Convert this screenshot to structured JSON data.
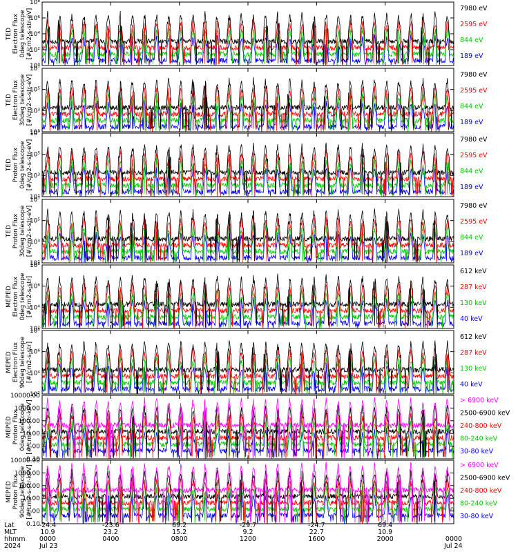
{
  "figure": {
    "footer": {
      "row_labels": [
        "Lat",
        "MLT",
        "hhmm",
        "2024"
      ],
      "lat": [
        "-24.4",
        "-23.6",
        "69.2",
        "-29.7",
        "-24.7",
        "69.4"
      ],
      "mlt": [
        "10.9",
        "23.2",
        "15.2",
        "9.2",
        "22.7",
        "10.9"
      ],
      "hhmm": [
        "0000",
        "0400",
        "0800",
        "1200",
        "1600",
        "2000",
        "0000"
      ],
      "date_start": "Jul 23",
      "date_end": "Jul 24"
    }
  },
  "chart_data": [
    {
      "type": "line",
      "ylabel": [
        "TED",
        "Electron Flux",
        "0deg telescope",
        "[#/cm2-s-str-eV]"
      ],
      "y_ticks": [
        "10⁰",
        "10²",
        "10⁴",
        "10⁶",
        "10⁸"
      ],
      "log_decades": [
        0,
        2,
        4,
        6,
        8
      ],
      "xlim_hours": [
        0,
        24
      ],
      "series": [
        {
          "name": "7980 eV",
          "color": "#000000"
        },
        {
          "name": "2595 eV",
          "color": "#ff0000"
        },
        {
          "name": "844 eV",
          "color": "#00cc00"
        },
        {
          "name": "189 eV",
          "color": "#0000ff"
        }
      ]
    },
    {
      "type": "line",
      "ylabel": [
        "TED",
        "Electron Flux",
        "30deg telescope",
        "[#/cm2-s-str-eV]"
      ],
      "y_ticks": [
        "10¹",
        "10³",
        "10⁵",
        "10⁷"
      ],
      "log_decades": [
        1,
        3,
        5,
        7
      ],
      "xlim_hours": [
        0,
        24
      ],
      "series": [
        {
          "name": "7980 eV",
          "color": "#000000"
        },
        {
          "name": "2595 eV",
          "color": "#ff0000"
        },
        {
          "name": "844 eV",
          "color": "#00cc00"
        },
        {
          "name": "189 eV",
          "color": "#0000ff"
        }
      ]
    },
    {
      "type": "line",
      "ylabel": [
        "TED",
        "Proton Flux",
        "0deg telescope",
        "[#/cm2-s-str-eV]"
      ],
      "y_ticks": [
        "10¹",
        "10³",
        "10⁵",
        "10⁷"
      ],
      "log_decades": [
        1,
        3,
        5,
        7
      ],
      "xlim_hours": [
        0,
        24
      ],
      "series": [
        {
          "name": "7980 eV",
          "color": "#000000"
        },
        {
          "name": "2595 eV",
          "color": "#ff0000"
        },
        {
          "name": "844 eV",
          "color": "#00cc00"
        },
        {
          "name": "189 eV",
          "color": "#0000ff"
        }
      ]
    },
    {
      "type": "line",
      "ylabel": [
        "TED",
        "Proton Flux",
        "30deg telescope",
        "[#/cm2-s-str-eV]"
      ],
      "y_ticks": [
        "10¹",
        "10³",
        "10⁵",
        "10⁷"
      ],
      "log_decades": [
        1,
        3,
        5,
        7
      ],
      "xlim_hours": [
        0,
        24
      ],
      "series": [
        {
          "name": "7980 eV",
          "color": "#000000"
        },
        {
          "name": "2595 eV",
          "color": "#ff0000"
        },
        {
          "name": "844 eV",
          "color": "#00cc00"
        },
        {
          "name": "189 eV",
          "color": "#0000ff"
        }
      ]
    },
    {
      "type": "line",
      "ylabel": [
        "MEPED",
        "Electron Flux",
        "0deg telescope",
        "[#/cm2-s-str]"
      ],
      "y_ticks": [
        "10²",
        "10⁴",
        "10⁶",
        "10⁸"
      ],
      "log_decades": [
        2,
        4,
        6,
        8
      ],
      "xlim_hours": [
        0,
        24
      ],
      "series": [
        {
          "name": "612 keV",
          "color": "#000000"
        },
        {
          "name": "287 keV",
          "color": "#ff0000"
        },
        {
          "name": "130 keV",
          "color": "#00cc00"
        },
        {
          "name": "40 keV",
          "color": "#0000ff"
        }
      ]
    },
    {
      "type": "line",
      "ylabel": [
        "MEPED",
        "Electron Flux",
        "90deg telescope",
        "[#/cm2-s-str]"
      ],
      "y_ticks": [
        "10²",
        "10⁴",
        "10⁶",
        "10⁸"
      ],
      "log_decades": [
        2,
        4,
        6,
        8
      ],
      "xlim_hours": [
        0,
        24
      ],
      "series": [
        {
          "name": "612 keV",
          "color": "#000000"
        },
        {
          "name": "287 keV",
          "color": "#ff0000"
        },
        {
          "name": "130 keV",
          "color": "#00cc00"
        },
        {
          "name": "40 keV",
          "color": "#0000ff"
        }
      ]
    },
    {
      "type": "line",
      "ylabel": [
        "MEPED",
        "Proton Flux",
        "0deg telescope",
        "[#/cm2-s-str-keV]"
      ],
      "y_ticks": [
        "0.10",
        "1.00",
        "10.00",
        "100.00",
        "1000.00",
        "10000.00"
      ],
      "log_decades": [
        -1,
        0,
        1,
        2,
        3,
        4
      ],
      "xlim_hours": [
        0,
        24
      ],
      "series": [
        {
          "name": "> 6900 keV",
          "color": "#ff00ff"
        },
        {
          "name": "2500-6900 keV",
          "color": "#000000"
        },
        {
          "name": "240-800 keV",
          "color": "#ff0000"
        },
        {
          "name": "80-240 keV",
          "color": "#00cc00"
        },
        {
          "name": "30-80 keV",
          "color": "#0000ff"
        }
      ]
    },
    {
      "type": "line",
      "ylabel": [
        "MEPED",
        "Proton Flux",
        "90deg telescope",
        "[#/cm2-s-str-keV]"
      ],
      "y_ticks": [
        "0.10",
        "1.00",
        "10.00",
        "100.00",
        "1000.00",
        "10000.00"
      ],
      "log_decades": [
        -1,
        0,
        1,
        2,
        3,
        4
      ],
      "xlim_hours": [
        0,
        24
      ],
      "series": [
        {
          "name": "> 6900 keV",
          "color": "#ff00ff"
        },
        {
          "name": "2500-6900 keV",
          "color": "#000000"
        },
        {
          "name": "240-800 keV",
          "color": "#ff0000"
        },
        {
          "name": "80-240 keV",
          "color": "#00cc00"
        },
        {
          "name": "30-80 keV",
          "color": "#0000ff"
        }
      ]
    }
  ]
}
